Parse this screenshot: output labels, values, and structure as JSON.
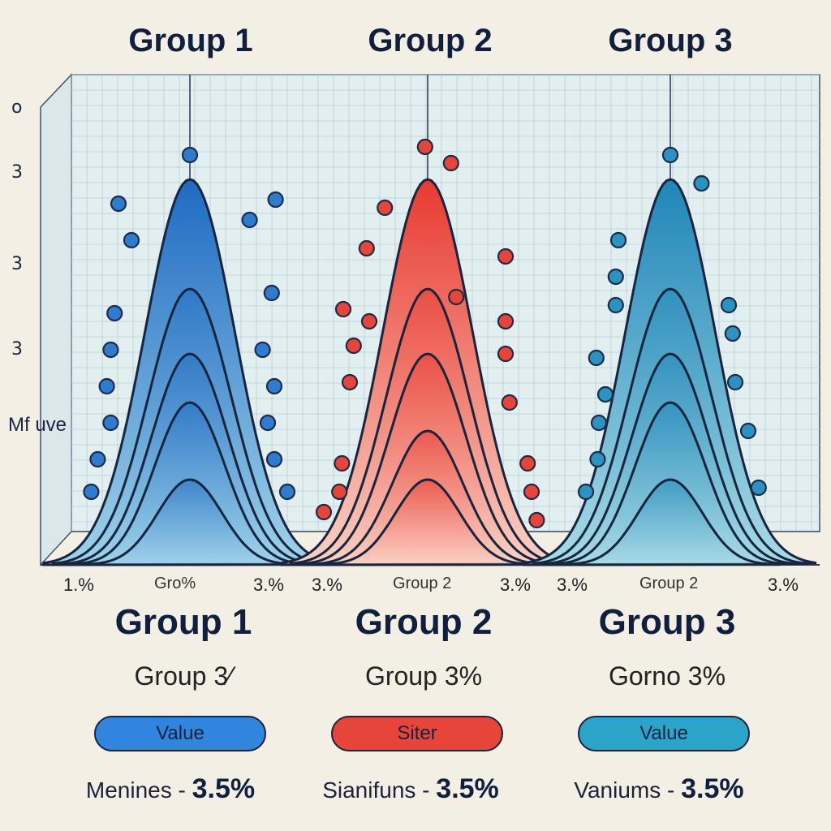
{
  "chart_data": {
    "type": "area",
    "panel_titles": [
      "Group 1",
      "Group 2",
      "Group 3"
    ],
    "ylabel": "Mf uve",
    "y_ticks": [
      "o",
      "3",
      "3",
      "3"
    ],
    "x_ticks": [
      [
        "1.%",
        "Gro%",
        "3.%"
      ],
      [
        "3.%",
        "Group 2",
        "3.%"
      ],
      [
        "3.%",
        "Group 2",
        "3.%"
      ]
    ],
    "grid": true,
    "groups": [
      {
        "name": "Group 1",
        "color": "#2f7bd0",
        "curve_peaks": [
          0.95,
          0.68,
          0.52,
          0.4,
          0.21
        ],
        "points": [
          {
            "x": 0.0,
            "y": 1.01
          },
          {
            "x": -0.55,
            "y": 0.89
          },
          {
            "x": -0.45,
            "y": 0.8
          },
          {
            "x": 0.46,
            "y": 0.85
          },
          {
            "x": 0.66,
            "y": 0.9
          },
          {
            "x": 0.63,
            "y": 0.67
          },
          {
            "x": -0.58,
            "y": 0.62
          },
          {
            "x": -0.61,
            "y": 0.53
          },
          {
            "x": 0.56,
            "y": 0.53
          },
          {
            "x": -0.64,
            "y": 0.44
          },
          {
            "x": 0.65,
            "y": 0.44
          },
          {
            "x": -0.61,
            "y": 0.35
          },
          {
            "x": 0.6,
            "y": 0.35
          },
          {
            "x": -0.71,
            "y": 0.26
          },
          {
            "x": 0.65,
            "y": 0.26
          },
          {
            "x": -0.76,
            "y": 0.18
          },
          {
            "x": 0.75,
            "y": 0.18
          }
        ]
      },
      {
        "name": "Group 2",
        "color": "#e8453a",
        "curve_peaks": [
          0.95,
          0.68,
          0.52,
          0.33,
          0.21
        ],
        "points": [
          {
            "x": -0.02,
            "y": 1.03
          },
          {
            "x": 0.18,
            "y": 0.99
          },
          {
            "x": -0.33,
            "y": 0.88
          },
          {
            "x": -0.47,
            "y": 0.78
          },
          {
            "x": 0.6,
            "y": 0.76
          },
          {
            "x": 0.22,
            "y": 0.66
          },
          {
            "x": -0.65,
            "y": 0.63
          },
          {
            "x": -0.45,
            "y": 0.6
          },
          {
            "x": 0.6,
            "y": 0.6
          },
          {
            "x": -0.57,
            "y": 0.54
          },
          {
            "x": 0.6,
            "y": 0.52
          },
          {
            "x": -0.6,
            "y": 0.45
          },
          {
            "x": 0.63,
            "y": 0.4
          },
          {
            "x": -0.66,
            "y": 0.25
          },
          {
            "x": 0.77,
            "y": 0.25
          },
          {
            "x": -0.68,
            "y": 0.18
          },
          {
            "x": 0.8,
            "y": 0.18
          },
          {
            "x": -0.8,
            "y": 0.13
          },
          {
            "x": 0.84,
            "y": 0.11
          }
        ]
      },
      {
        "name": "Group 3",
        "color": "#2a93c2",
        "curve_peaks": [
          0.95,
          0.68,
          0.52,
          0.4,
          0.21
        ],
        "points": [
          {
            "x": 0.0,
            "y": 1.01
          },
          {
            "x": 0.24,
            "y": 0.94
          },
          {
            "x": -0.4,
            "y": 0.8
          },
          {
            "x": -0.42,
            "y": 0.71
          },
          {
            "x": -0.42,
            "y": 0.64
          },
          {
            "x": 0.45,
            "y": 0.64
          },
          {
            "x": 0.48,
            "y": 0.57
          },
          {
            "x": -0.57,
            "y": 0.51
          },
          {
            "x": 0.5,
            "y": 0.45
          },
          {
            "x": -0.5,
            "y": 0.42
          },
          {
            "x": -0.55,
            "y": 0.35
          },
          {
            "x": 0.6,
            "y": 0.33
          },
          {
            "x": -0.56,
            "y": 0.26
          },
          {
            "x": -0.65,
            "y": 0.18
          },
          {
            "x": 0.68,
            "y": 0.19
          }
        ]
      }
    ]
  },
  "cards": [
    {
      "title": "Group 1",
      "subtitle": "Group 3⁄",
      "button": "Value",
      "metric_label": "Menines -",
      "metric_value": "3.5%",
      "color": "#2f86dc"
    },
    {
      "title": "Group 2",
      "subtitle": "Group 3%",
      "button": "Siter",
      "metric_label": "Sianifuns -",
      "metric_value": "3.5%",
      "color": "#e8453a"
    },
    {
      "title": "Group 3",
      "subtitle": "Gorno 3%",
      "button": "Value",
      "metric_label": "Vaniums -",
      "metric_value": "3.5%",
      "color": "#2aa4c8"
    }
  ]
}
